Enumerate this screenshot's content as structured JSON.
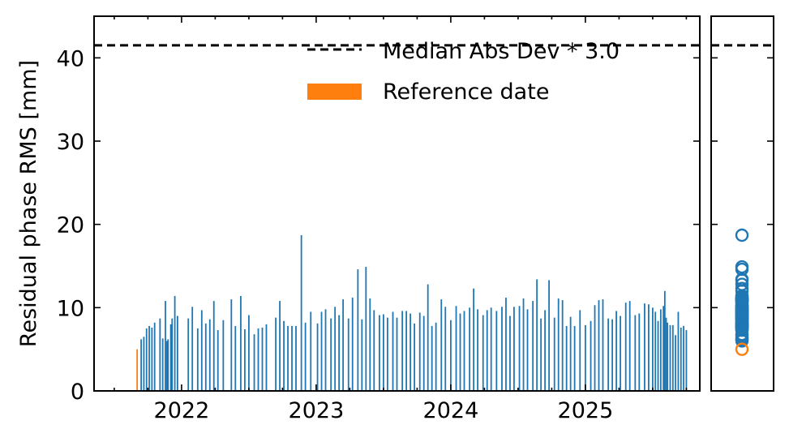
{
  "chart_data": {
    "type": "bar",
    "ylabel": "Residual phase RMS [mm]",
    "x_ticks": [
      {
        "label": "2022",
        "year": 2022.0
      },
      {
        "label": "2023",
        "year": 2023.0
      },
      {
        "label": "2024",
        "year": 2024.0
      },
      {
        "label": "2025",
        "year": 2025.0
      }
    ],
    "xlim": [
      2021.35,
      2025.85
    ],
    "ylim": [
      0,
      45
    ],
    "y_ticks": [
      0,
      10,
      20,
      30,
      40
    ],
    "threshold": {
      "value": 41.5,
      "label": "Median Abs Dev * 3.0"
    },
    "reference": {
      "date": "2021-09-02",
      "year": 2021.67,
      "value": 5.0,
      "label": "Reference date"
    },
    "legend_position": "upper-right",
    "series": [
      {
        "values_by_year": [
          [
            2021.7,
            6.2
          ],
          [
            2021.72,
            6.5
          ],
          [
            2021.74,
            7.5
          ],
          [
            2021.76,
            7.8
          ],
          [
            2021.78,
            7.6
          ],
          [
            2021.8,
            8.2
          ],
          [
            2021.84,
            8.7
          ],
          [
            2021.86,
            6.3
          ],
          [
            2021.88,
            10.8
          ],
          [
            2021.89,
            6.0
          ],
          [
            2021.9,
            6.2
          ],
          [
            2021.92,
            8.0
          ],
          [
            2021.93,
            8.7
          ],
          [
            2021.95,
            11.4
          ],
          [
            2021.97,
            9.0
          ],
          [
            2022.05,
            8.7
          ],
          [
            2022.08,
            10.1
          ],
          [
            2022.12,
            7.5
          ],
          [
            2022.15,
            9.7
          ],
          [
            2022.18,
            8.1
          ],
          [
            2022.21,
            8.6
          ],
          [
            2022.24,
            10.8
          ],
          [
            2022.27,
            7.3
          ],
          [
            2022.31,
            8.5
          ],
          [
            2022.37,
            11.0
          ],
          [
            2022.4,
            7.8
          ],
          [
            2022.44,
            11.4
          ],
          [
            2022.47,
            7.4
          ],
          [
            2022.5,
            9.1
          ],
          [
            2022.54,
            6.8
          ],
          [
            2022.57,
            7.5
          ],
          [
            2022.6,
            7.6
          ],
          [
            2022.63,
            8.0
          ],
          [
            2022.7,
            8.8
          ],
          [
            2022.73,
            10.8
          ],
          [
            2022.76,
            8.4
          ],
          [
            2022.79,
            7.8
          ],
          [
            2022.82,
            7.8
          ],
          [
            2022.85,
            7.8
          ],
          [
            2022.89,
            18.7
          ],
          [
            2022.92,
            8.2
          ],
          [
            2022.96,
            9.5
          ],
          [
            2023.01,
            8.1
          ],
          [
            2023.04,
            9.5
          ],
          [
            2023.07,
            9.8
          ],
          [
            2023.11,
            8.7
          ],
          [
            2023.14,
            10.1
          ],
          [
            2023.17,
            9.1
          ],
          [
            2023.2,
            11.0
          ],
          [
            2023.24,
            8.7
          ],
          [
            2023.27,
            11.2
          ],
          [
            2023.31,
            14.6
          ],
          [
            2023.34,
            8.6
          ],
          [
            2023.37,
            14.9
          ],
          [
            2023.4,
            11.1
          ],
          [
            2023.43,
            9.7
          ],
          [
            2023.47,
            9.1
          ],
          [
            2023.5,
            9.2
          ],
          [
            2023.53,
            8.8
          ],
          [
            2023.57,
            9.5
          ],
          [
            2023.6,
            8.8
          ],
          [
            2023.64,
            9.6
          ],
          [
            2023.67,
            9.6
          ],
          [
            2023.7,
            9.3
          ],
          [
            2023.73,
            8.1
          ],
          [
            2023.77,
            9.4
          ],
          [
            2023.8,
            9.0
          ],
          [
            2023.83,
            12.8
          ],
          [
            2023.86,
            7.8
          ],
          [
            2023.89,
            8.2
          ],
          [
            2023.93,
            11.0
          ],
          [
            2023.96,
            10.1
          ],
          [
            2024.0,
            8.5
          ],
          [
            2024.04,
            10.2
          ],
          [
            2024.07,
            9.3
          ],
          [
            2024.1,
            9.6
          ],
          [
            2024.14,
            10.0
          ],
          [
            2024.17,
            12.3
          ],
          [
            2024.2,
            9.8
          ],
          [
            2024.24,
            9.1
          ],
          [
            2024.27,
            9.7
          ],
          [
            2024.3,
            10.0
          ],
          [
            2024.34,
            9.6
          ],
          [
            2024.38,
            10.1
          ],
          [
            2024.41,
            11.2
          ],
          [
            2024.44,
            9.0
          ],
          [
            2024.47,
            10.1
          ],
          [
            2024.51,
            10.2
          ],
          [
            2024.54,
            11.1
          ],
          [
            2024.57,
            9.8
          ],
          [
            2024.61,
            10.8
          ],
          [
            2024.64,
            13.4
          ],
          [
            2024.67,
            8.7
          ],
          [
            2024.7,
            9.7
          ],
          [
            2024.73,
            13.3
          ],
          [
            2024.77,
            8.8
          ],
          [
            2024.8,
            11.1
          ],
          [
            2024.83,
            10.9
          ],
          [
            2024.86,
            7.8
          ],
          [
            2024.89,
            8.9
          ],
          [
            2024.92,
            7.8
          ],
          [
            2024.96,
            9.7
          ],
          [
            2025.0,
            7.9
          ],
          [
            2025.04,
            8.4
          ],
          [
            2025.07,
            10.3
          ],
          [
            2025.1,
            10.9
          ],
          [
            2025.13,
            11.0
          ],
          [
            2025.17,
            8.7
          ],
          [
            2025.2,
            8.6
          ],
          [
            2025.23,
            9.6
          ],
          [
            2025.26,
            9.0
          ],
          [
            2025.3,
            10.6
          ],
          [
            2025.33,
            10.8
          ],
          [
            2025.37,
            9.1
          ],
          [
            2025.4,
            9.3
          ],
          [
            2025.44,
            10.5
          ],
          [
            2025.47,
            10.4
          ],
          [
            2025.5,
            10.0
          ],
          [
            2025.52,
            9.5
          ],
          [
            2025.54,
            8.4
          ],
          [
            2025.56,
            9.8
          ],
          [
            2025.58,
            10.2
          ],
          [
            2025.59,
            12.0
          ],
          [
            2025.6,
            8.8
          ],
          [
            2025.61,
            8.2
          ],
          [
            2025.63,
            7.9
          ],
          [
            2025.65,
            7.9
          ],
          [
            2025.67,
            6.7
          ],
          [
            2025.69,
            9.5
          ],
          [
            2025.71,
            7.6
          ],
          [
            2025.73,
            7.8
          ],
          [
            2025.75,
            7.3
          ]
        ]
      }
    ]
  }
}
